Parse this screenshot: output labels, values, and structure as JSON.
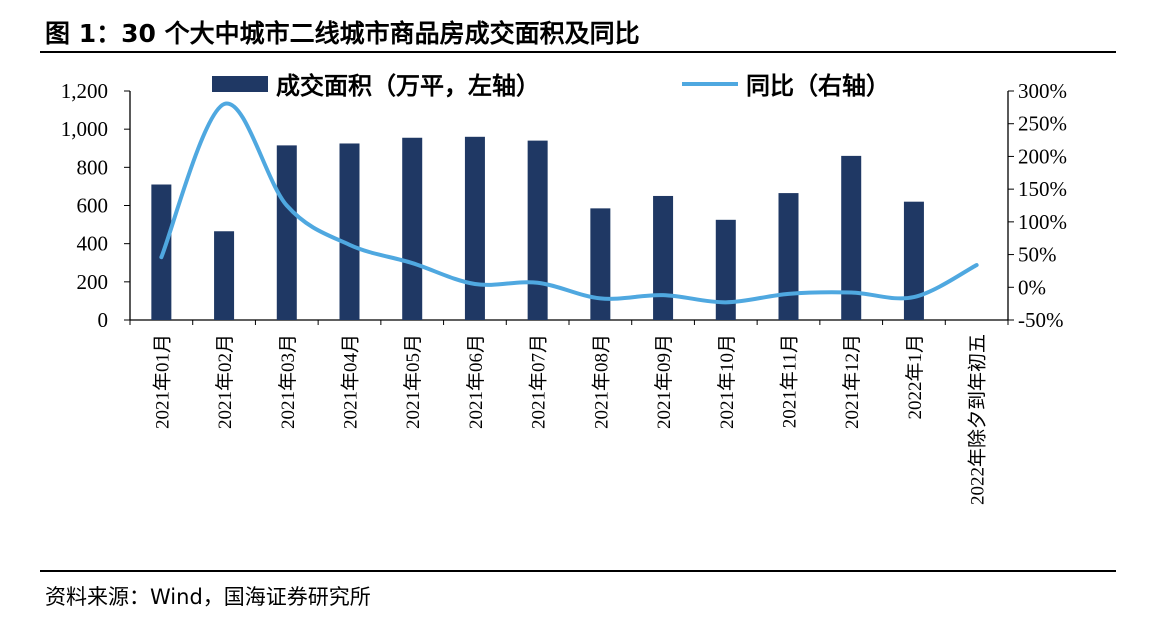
{
  "figure_title": "图 1：30 个大中城市二线城市商品房成交面积及同比",
  "source": "资料来源：Wind，国海证券研究所",
  "chart_data": {
    "type": "bar",
    "categories": [
      "2021年01月",
      "2021年02月",
      "2021年03月",
      "2021年04月",
      "2021年05月",
      "2021年06月",
      "2021年07月",
      "2021年08月",
      "2021年09月",
      "2021年10月",
      "2021年11月",
      "2021年12月",
      "2022年1月",
      "2022年除夕到年初五"
    ],
    "series": [
      {
        "name": "成交面积（万平，左轴）",
        "kind": "bar",
        "axis": "left",
        "color": "#1F3864",
        "values": [
          710,
          465,
          915,
          925,
          955,
          960,
          940,
          585,
          650,
          525,
          665,
          860,
          620,
          null
        ]
      },
      {
        "name": "同比（右轴）",
        "kind": "line",
        "axis": "right",
        "color": "#4FA8E0",
        "values": [
          46,
          280,
          125,
          65,
          37,
          5,
          7,
          -17,
          -12,
          -23,
          -10,
          -8,
          -15,
          34
        ]
      }
    ],
    "left_axis": {
      "ylim": [
        0,
        1200
      ],
      "ticks": [
        0,
        200,
        400,
        600,
        800,
        1000,
        1200
      ],
      "tick_labels": [
        "0",
        "200",
        "400",
        "600",
        "800",
        "1,000",
        "1,200"
      ]
    },
    "right_axis": {
      "ylim": [
        -50,
        300
      ],
      "ticks": [
        -50,
        0,
        50,
        100,
        150,
        200,
        250,
        300
      ],
      "tick_labels": [
        "-50%",
        "0%",
        "50%",
        "100%",
        "150%",
        "200%",
        "250%",
        "300%"
      ]
    },
    "legend": "top",
    "grid": false
  }
}
